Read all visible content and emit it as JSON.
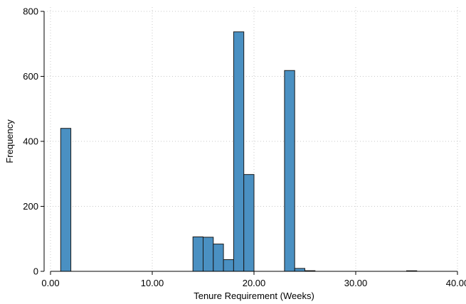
{
  "chart_data": {
    "type": "bar",
    "xlabel": "Tenure Requirement (Weeks)",
    "ylabel": "Frequency",
    "xlim": [
      0,
      40
    ],
    "ylim": [
      0,
      800
    ],
    "x_ticks": [
      "0.00",
      "10.00",
      "20.00",
      "30.00",
      "40.00"
    ],
    "y_ticks": [
      "0",
      "200",
      "400",
      "600",
      "800"
    ],
    "bin_width": 1,
    "grid": true,
    "bar_color": "#4a90c2",
    "bins": [
      {
        "x0": 1,
        "x1": 2,
        "count": 440
      },
      {
        "x0": 14,
        "x1": 15,
        "count": 106
      },
      {
        "x0": 15,
        "x1": 16,
        "count": 105
      },
      {
        "x0": 16,
        "x1": 17,
        "count": 84
      },
      {
        "x0": 17,
        "x1": 18,
        "count": 36
      },
      {
        "x0": 18,
        "x1": 19,
        "count": 737
      },
      {
        "x0": 19,
        "x1": 20,
        "count": 298
      },
      {
        "x0": 23,
        "x1": 24,
        "count": 618
      },
      {
        "x0": 24,
        "x1": 25,
        "count": 9
      },
      {
        "x0": 25,
        "x1": 26,
        "count": 2
      },
      {
        "x0": 35,
        "x1": 36,
        "count": 1
      }
    ]
  }
}
